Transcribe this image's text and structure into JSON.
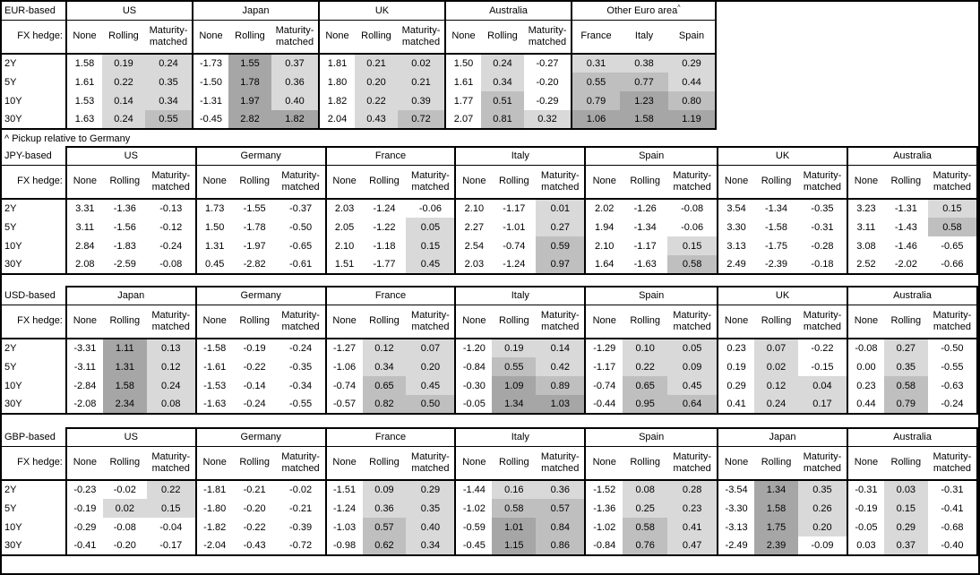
{
  "page": {
    "footnote": "^ Pickup relative to Germany",
    "fx_hedge_label": "FX hedge:",
    "tenors": [
      "2Y",
      "5Y",
      "10Y",
      "30Y"
    ],
    "hedge_columns": [
      "None",
      "Rolling",
      "Maturity-matched"
    ],
    "heatmap_colors": {
      "negative": "#ffffff",
      "low": "#d9d9d9",
      "mid": "#bfbfbf",
      "high": "#a6a6a6"
    }
  },
  "tables": [
    {
      "id": "eur",
      "base_label": "EUR-based",
      "groups": [
        {
          "name": "US",
          "rows": [
            [
              1.58,
              0.19,
              0.24
            ],
            [
              1.61,
              0.22,
              0.35
            ],
            [
              1.53,
              0.14,
              0.34
            ],
            [
              1.63,
              0.24,
              0.55
            ]
          ]
        },
        {
          "name": "Japan",
          "rows": [
            [
              -1.73,
              1.55,
              0.37
            ],
            [
              -1.5,
              1.78,
              0.36
            ],
            [
              -1.31,
              1.97,
              0.4
            ],
            [
              -0.45,
              2.82,
              1.82
            ]
          ]
        },
        {
          "name": "UK",
          "rows": [
            [
              1.81,
              0.21,
              0.02
            ],
            [
              1.8,
              0.2,
              0.21
            ],
            [
              1.82,
              0.22,
              0.39
            ],
            [
              2.04,
              0.43,
              0.72
            ]
          ]
        },
        {
          "name": "Australia",
          "rows": [
            [
              1.5,
              0.24,
              -0.27
            ],
            [
              1.61,
              0.34,
              -0.2
            ],
            [
              1.77,
              0.51,
              -0.29
            ],
            [
              2.07,
              0.81,
              0.32
            ]
          ]
        },
        {
          "name": "Other Euro area",
          "superscript": "^",
          "shade_all": true,
          "columns": [
            "France",
            "Italy",
            "Spain"
          ],
          "rows": [
            [
              0.31,
              0.38,
              0.29
            ],
            [
              0.55,
              0.77,
              0.44
            ],
            [
              0.79,
              1.23,
              0.8
            ],
            [
              1.06,
              1.58,
              1.19
            ]
          ]
        }
      ]
    },
    {
      "id": "jpy",
      "base_label": "JPY-based",
      "groups": [
        {
          "name": "US",
          "rows": [
            [
              3.31,
              -1.36,
              -0.13
            ],
            [
              3.11,
              -1.56,
              -0.12
            ],
            [
              2.84,
              -1.83,
              -0.24
            ],
            [
              2.08,
              -2.59,
              -0.08
            ]
          ]
        },
        {
          "name": "Germany",
          "rows": [
            [
              1.73,
              -1.55,
              -0.37
            ],
            [
              1.5,
              -1.78,
              -0.5
            ],
            [
              1.31,
              -1.97,
              -0.65
            ],
            [
              0.45,
              -2.82,
              -0.61
            ]
          ]
        },
        {
          "name": "France",
          "rows": [
            [
              2.03,
              -1.24,
              -0.06
            ],
            [
              2.05,
              -1.22,
              0.05
            ],
            [
              2.1,
              -1.18,
              0.15
            ],
            [
              1.51,
              -1.77,
              0.45
            ]
          ]
        },
        {
          "name": "Italy",
          "rows": [
            [
              2.1,
              -1.17,
              0.01
            ],
            [
              2.27,
              -1.01,
              0.27
            ],
            [
              2.54,
              -0.74,
              0.59
            ],
            [
              2.03,
              -1.24,
              0.97
            ]
          ]
        },
        {
          "name": "Spain",
          "rows": [
            [
              2.02,
              -1.26,
              -0.08
            ],
            [
              1.94,
              -1.34,
              -0.06
            ],
            [
              2.1,
              -1.17,
              0.15
            ],
            [
              1.64,
              -1.63,
              0.58
            ]
          ]
        },
        {
          "name": "UK",
          "rows": [
            [
              3.54,
              -1.34,
              -0.35
            ],
            [
              3.3,
              -1.58,
              -0.31
            ],
            [
              3.13,
              -1.75,
              -0.28
            ],
            [
              2.49,
              -2.39,
              -0.18
            ]
          ]
        },
        {
          "name": "Australia",
          "rows": [
            [
              3.23,
              -1.31,
              0.15
            ],
            [
              3.11,
              -1.43,
              0.58
            ],
            [
              3.08,
              -1.46,
              -0.65
            ],
            [
              2.52,
              -2.02,
              -0.66
            ]
          ]
        }
      ]
    },
    {
      "id": "usd",
      "base_label": "USD-based",
      "groups": [
        {
          "name": "Japan",
          "rows": [
            [
              -3.31,
              1.11,
              0.13
            ],
            [
              -3.11,
              1.31,
              0.12
            ],
            [
              -2.84,
              1.58,
              0.24
            ],
            [
              -2.08,
              2.34,
              0.08
            ]
          ]
        },
        {
          "name": "Germany",
          "rows": [
            [
              -1.58,
              -0.19,
              -0.24
            ],
            [
              -1.61,
              -0.22,
              -0.35
            ],
            [
              -1.53,
              -0.14,
              -0.34
            ],
            [
              -1.63,
              -0.24,
              -0.55
            ]
          ]
        },
        {
          "name": "France",
          "rows": [
            [
              -1.27,
              0.12,
              0.07
            ],
            [
              -1.06,
              0.34,
              0.2
            ],
            [
              -0.74,
              0.65,
              0.45
            ],
            [
              -0.57,
              0.82,
              0.5
            ]
          ]
        },
        {
          "name": "Italy",
          "rows": [
            [
              -1.2,
              0.19,
              0.14
            ],
            [
              -0.84,
              0.55,
              0.42
            ],
            [
              -0.3,
              1.09,
              0.89
            ],
            [
              -0.05,
              1.34,
              1.03
            ]
          ]
        },
        {
          "name": "Spain",
          "rows": [
            [
              -1.29,
              0.1,
              0.05
            ],
            [
              -1.17,
              0.22,
              0.09
            ],
            [
              -0.74,
              0.65,
              0.45
            ],
            [
              -0.44,
              0.95,
              0.64
            ]
          ]
        },
        {
          "name": "UK",
          "rows": [
            [
              0.23,
              0.07,
              -0.22
            ],
            [
              0.19,
              0.02,
              -0.15
            ],
            [
              0.29,
              0.12,
              0.04
            ],
            [
              0.41,
              0.24,
              0.17
            ]
          ]
        },
        {
          "name": "Australia",
          "rows": [
            [
              -0.08,
              0.27,
              -0.5
            ],
            [
              0.0,
              0.35,
              -0.55
            ],
            [
              0.23,
              0.58,
              -0.63
            ],
            [
              0.44,
              0.79,
              -0.24
            ]
          ]
        }
      ]
    },
    {
      "id": "gbp",
      "base_label": "GBP-based",
      "groups": [
        {
          "name": "US",
          "rows": [
            [
              -0.23,
              -0.02,
              0.22
            ],
            [
              -0.19,
              0.02,
              0.15
            ],
            [
              -0.29,
              -0.08,
              -0.04
            ],
            [
              -0.41,
              -0.2,
              -0.17
            ]
          ]
        },
        {
          "name": "Germany",
          "rows": [
            [
              -1.81,
              -0.21,
              -0.02
            ],
            [
              -1.8,
              -0.2,
              -0.21
            ],
            [
              -1.82,
              -0.22,
              -0.39
            ],
            [
              -2.04,
              -0.43,
              -0.72
            ]
          ]
        },
        {
          "name": "France",
          "rows": [
            [
              -1.51,
              0.09,
              0.29
            ],
            [
              -1.24,
              0.36,
              0.35
            ],
            [
              -1.03,
              0.57,
              0.4
            ],
            [
              -0.98,
              0.62,
              0.34
            ]
          ]
        },
        {
          "name": "Italy",
          "rows": [
            [
              -1.44,
              0.16,
              0.36
            ],
            [
              -1.02,
              0.58,
              0.57
            ],
            [
              -0.59,
              1.01,
              0.84
            ],
            [
              -0.45,
              1.15,
              0.86
            ]
          ]
        },
        {
          "name": "Spain",
          "rows": [
            [
              -1.52,
              0.08,
              0.28
            ],
            [
              -1.36,
              0.25,
              0.23
            ],
            [
              -1.02,
              0.58,
              0.41
            ],
            [
              -0.84,
              0.76,
              0.47
            ]
          ]
        },
        {
          "name": "Japan",
          "rows": [
            [
              -3.54,
              1.34,
              0.35
            ],
            [
              -3.3,
              1.58,
              0.26
            ],
            [
              -3.13,
              1.75,
              0.2
            ],
            [
              -2.49,
              2.39,
              -0.09
            ]
          ]
        },
        {
          "name": "Australia",
          "rows": [
            [
              -0.31,
              0.03,
              -0.31
            ],
            [
              -0.19,
              0.15,
              -0.41
            ],
            [
              -0.05,
              0.29,
              -0.68
            ],
            [
              0.03,
              0.37,
              -0.4
            ]
          ]
        }
      ]
    }
  ]
}
